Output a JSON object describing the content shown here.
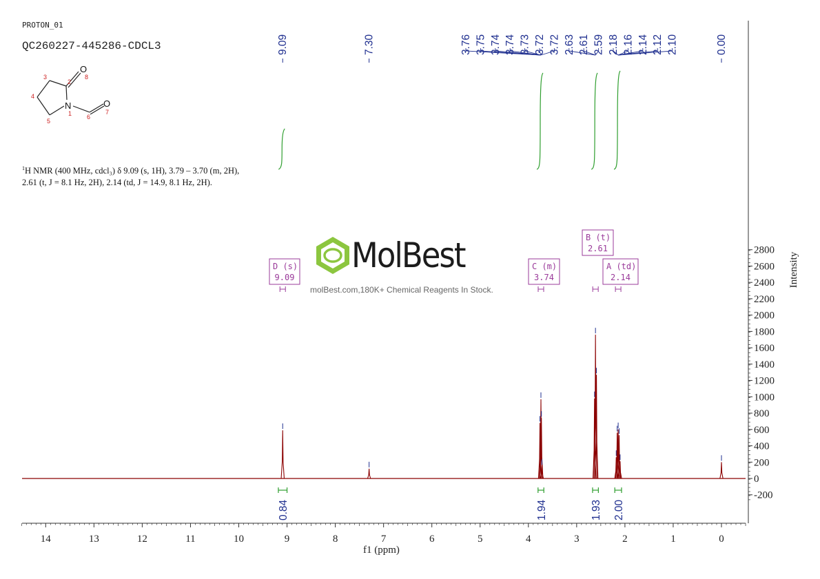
{
  "header": {
    "experiment": "PROTON_01",
    "sample": "QC260227-445286-CDCL3"
  },
  "structure": {
    "atoms": {
      "a2": "2",
      "a3": "3",
      "a4": "4",
      "a5": "5",
      "a1": "1",
      "a6": "6",
      "a7": "7",
      "a8": "8",
      "N": "N",
      "O8": "O",
      "O7": "O"
    }
  },
  "nmr_text": {
    "nucleus_sup": "1",
    "line1": "H NMR (400 MHz, cdcl₃) δ 9.09 (s, 1H), 3.79 – 3.70 (m, 2H),",
    "line2": "2.61 (t, J = 8.1 Hz, 2H), 2.14 (td, J = 14.9, 8.1 Hz, 2H)."
  },
  "watermark": {
    "brand": "MolBest",
    "tagline": "molBest.com,180K+ Chemical Reagents In Stock."
  },
  "colors": {
    "spectrum": "#8b0000",
    "peak_label": "#1f2f8f",
    "integral": "#2e9e2e",
    "multiplet": "#9a3a9a",
    "logo": "#8cc63f",
    "axis": "#333333"
  },
  "chart_data": {
    "type": "line",
    "xlabel": "f1 (ppm)",
    "ylabel": "Intensity",
    "xlim": [
      14.5,
      -0.5
    ],
    "ylim": [
      -280,
      2800
    ],
    "x_ticks": [
      14,
      13,
      12,
      11,
      10,
      9,
      8,
      7,
      6,
      5,
      4,
      3,
      2,
      1,
      0
    ],
    "y_ticks": [
      2800,
      2600,
      2400,
      2200,
      2000,
      1800,
      1600,
      1400,
      1200,
      1000,
      800,
      600,
      400,
      200,
      0,
      -200
    ],
    "x_tick_labels": [
      "14",
      "13",
      "12",
      "11",
      "10",
      "9",
      "8",
      "7",
      "6",
      "5",
      "4",
      "3",
      "2",
      "1",
      "0"
    ],
    "y_tick_labels": [
      "2800",
      "2600",
      "2400",
      "2200",
      "2000",
      "1800",
      "1600",
      "1400",
      "1200",
      "1000",
      "800",
      "600",
      "400",
      "200",
      "0",
      "-200"
    ],
    "peaks": [
      {
        "ppm": 9.09,
        "height": 590
      },
      {
        "ppm": 7.3,
        "height": 120
      },
      {
        "ppm": 3.76,
        "height": 680
      },
      {
        "ppm": 3.74,
        "height": 970
      },
      {
        "ppm": 3.73,
        "height": 740
      },
      {
        "ppm": 3.72,
        "height": 150
      },
      {
        "ppm": 2.63,
        "height": 980
      },
      {
        "ppm": 2.61,
        "height": 1760
      },
      {
        "ppm": 2.59,
        "height": 1270
      },
      {
        "ppm": 2.18,
        "height": 260
      },
      {
        "ppm": 2.16,
        "height": 560
      },
      {
        "ppm": 2.14,
        "height": 600
      },
      {
        "ppm": 2.12,
        "height": 530
      },
      {
        "ppm": 2.1,
        "height": 210
      },
      {
        "ppm": 0.0,
        "height": 200
      }
    ],
    "peak_labels": {
      "group1": [
        "9.09"
      ],
      "group2": [
        "7.30"
      ],
      "group3": [
        "3.76",
        "3.75",
        "3.74",
        "3.74",
        "3.73",
        "3.72",
        "3.72",
        "2.63",
        "2.61",
        "2.59",
        "2.18",
        "2.16",
        "2.14",
        "2.12",
        "2.10"
      ],
      "group4": [
        "0.00"
      ]
    },
    "integrals": [
      {
        "from": 9.18,
        "to": 9.0,
        "value": "0.84"
      },
      {
        "from": 3.8,
        "to": 3.68,
        "value": "1.94"
      },
      {
        "from": 2.67,
        "to": 2.55,
        "value": "1.93"
      },
      {
        "from": 2.21,
        "to": 2.07,
        "value": "2.00"
      }
    ],
    "multiplets": [
      {
        "letter": "D",
        "mult": "(s)",
        "shift": "9.09",
        "ppm": 9.09
      },
      {
        "letter": "C",
        "mult": "(m)",
        "shift": "3.74",
        "ppm": 3.74
      },
      {
        "letter": "B",
        "mult": "(t)",
        "shift": "2.61",
        "ppm": 2.61
      },
      {
        "letter": "A",
        "mult": "(td)",
        "shift": "2.14",
        "ppm": 2.14
      }
    ]
  }
}
